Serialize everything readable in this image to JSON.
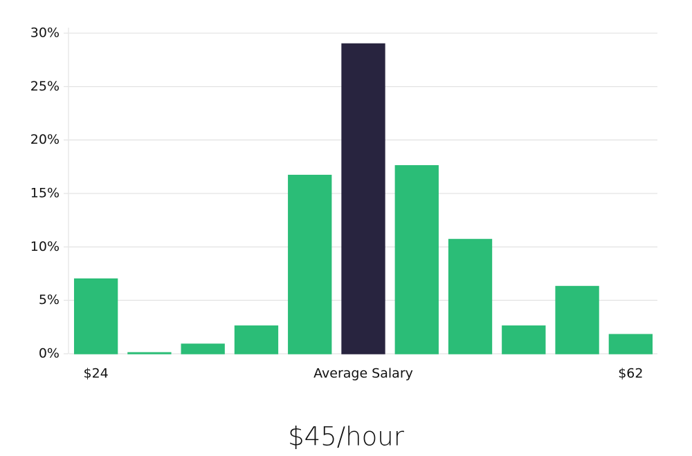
{
  "chart_data": {
    "type": "bar",
    "title": "$45/hour",
    "categories": [
      "$24",
      null,
      null,
      null,
      null,
      "Average Salary",
      null,
      null,
      null,
      null,
      "$62"
    ],
    "values": [
      7.0,
      0.1,
      0.9,
      2.6,
      16.7,
      29.0,
      17.6,
      10.7,
      2.6,
      6.3,
      1.8
    ],
    "colors": [
      "#2bbd77",
      "#2bbd77",
      "#2bbd77",
      "#2bbd77",
      "#2bbd77",
      "#28243f",
      "#2bbd77",
      "#2bbd77",
      "#2bbd77",
      "#2bbd77",
      "#2bbd77"
    ],
    "ylim": [
      0,
      30
    ],
    "yticks": [
      {
        "value": 0,
        "label": "0%"
      },
      {
        "value": 5,
        "label": "5%"
      },
      {
        "value": 10,
        "label": "10%"
      },
      {
        "value": 15,
        "label": "15%"
      },
      {
        "value": 20,
        "label": "20%"
      },
      {
        "value": 25,
        "label": "25%"
      },
      {
        "value": 30,
        "label": "30%"
      }
    ],
    "grid": true
  }
}
